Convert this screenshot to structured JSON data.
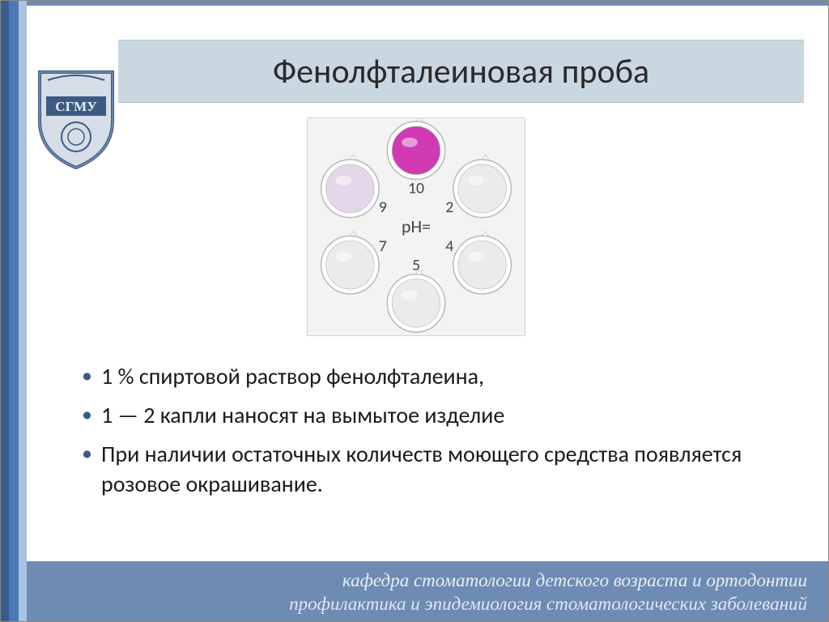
{
  "title": "Фенолфталеиновая проба",
  "bullets": [
    "1 % спиртовой раствор фенолфталеина,",
    "1 — 2 капли наносят на вымытое изделие",
    "При наличии остаточных количеств моющего средства появляется розовое окрашивание."
  ],
  "footer": {
    "line1": "кафедра стоматологии детского возраста и ортодонтии",
    "line2": "профилактика и эпидемиология стоматологических заболеваний"
  },
  "ph_diagram": {
    "center_label": "pH=",
    "background": "#f3f3f3",
    "cup_stroke": "#b8b8b8",
    "cup_fill_clear": "#e8e8ea",
    "cup_fill_lilac": "#e1cfe6",
    "cup_fill_pink": "#d13ab3",
    "cups": [
      {
        "angle_deg": -90,
        "label": "10",
        "fill_key": "cup_fill_pink"
      },
      {
        "angle_deg": -30,
        "label": "2",
        "fill_key": "cup_fill_clear"
      },
      {
        "angle_deg": 30,
        "label": "4",
        "fill_key": "cup_fill_clear"
      },
      {
        "angle_deg": 90,
        "label": "5",
        "fill_key": "cup_fill_clear"
      },
      {
        "angle_deg": 150,
        "label": "7",
        "fill_key": "cup_fill_clear"
      },
      {
        "angle_deg": 210,
        "label": "9",
        "fill_key": "cup_fill_lilac"
      }
    ],
    "ring_radius": 95,
    "cup_radius": 36,
    "label_radius": 48
  },
  "colors": {
    "rail_dark": "#385d8a",
    "rail_mid": "#4a7ab5",
    "rail_light": "#a9c3e0",
    "title_band": "#c9d7e1",
    "footer_bg": "#6d8bb3"
  },
  "logo": {
    "shield_fill": "#d6dde6",
    "shield_stroke": "#3c5a84",
    "ribbon_fill": "#3c5a84",
    "text": "СГМУ"
  }
}
